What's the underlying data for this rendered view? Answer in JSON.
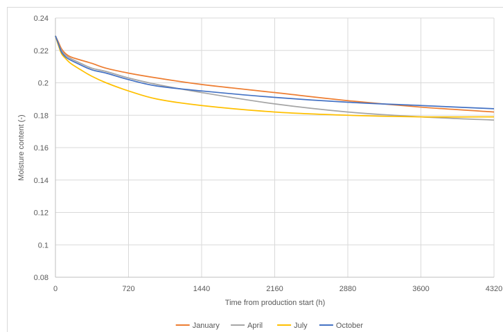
{
  "chart_data": {
    "type": "line",
    "title": "",
    "xlabel": "Time from production start (h)",
    "ylabel": "Moisture content (-)",
    "xlim": [
      0,
      4320
    ],
    "ylim": [
      0.08,
      0.24
    ],
    "xticks": [
      0,
      720,
      1440,
      2160,
      2880,
      3600,
      4320
    ],
    "xtick_labels": [
      "0",
      "720",
      "1440",
      "2160",
      "2880",
      "3600",
      "4320"
    ],
    "yticks": [
      0.08,
      0.1,
      0.12,
      0.14,
      0.16,
      0.18,
      0.2,
      0.22,
      0.24
    ],
    "ytick_labels": [
      "0.08",
      "0.1",
      "0.12",
      "0.14",
      "0.16",
      "0.18",
      "0.2",
      "0.22",
      "0.24"
    ],
    "grid": true,
    "legend_position": "bottom",
    "series": [
      {
        "name": "January",
        "color": "#ED7D31",
        "x": [
          0,
          30,
          60,
          100,
          150,
          250,
          360,
          500,
          720,
          1000,
          1440,
          2160,
          2880,
          3600,
          4320
        ],
        "y": [
          0.229,
          0.225,
          0.221,
          0.218,
          0.216,
          0.214,
          0.212,
          0.209,
          0.206,
          0.203,
          0.199,
          0.194,
          0.189,
          0.185,
          0.182
        ]
      },
      {
        "name": "April",
        "color": "#A5A5A5",
        "x": [
          0,
          30,
          60,
          100,
          150,
          250,
          360,
          500,
          720,
          1000,
          1440,
          2160,
          2880,
          3600,
          4320
        ],
        "y": [
          0.229,
          0.224,
          0.22,
          0.217,
          0.215,
          0.212,
          0.209,
          0.207,
          0.203,
          0.199,
          0.194,
          0.187,
          0.182,
          0.179,
          0.177
        ]
      },
      {
        "name": "July",
        "color": "#FFC000",
        "x": [
          0,
          30,
          60,
          100,
          150,
          250,
          360,
          500,
          720,
          1000,
          1440,
          2160,
          2880,
          3600,
          4320
        ],
        "y": [
          0.229,
          0.223,
          0.218,
          0.215,
          0.212,
          0.208,
          0.204,
          0.2,
          0.195,
          0.19,
          0.186,
          0.182,
          0.18,
          0.179,
          0.179
        ]
      },
      {
        "name": "October",
        "color": "#4472C4",
        "x": [
          0,
          30,
          60,
          100,
          150,
          250,
          360,
          500,
          720,
          1000,
          1440,
          2160,
          2880,
          3600,
          4320
        ],
        "y": [
          0.229,
          0.224,
          0.219,
          0.216,
          0.214,
          0.211,
          0.208,
          0.206,
          0.202,
          0.198,
          0.195,
          0.191,
          0.188,
          0.186,
          0.184
        ]
      }
    ]
  }
}
